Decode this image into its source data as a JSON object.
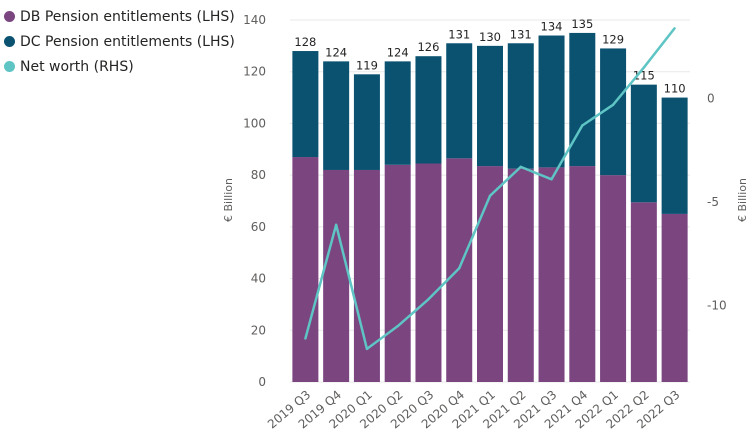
{
  "chart_data": {
    "type": "bar",
    "stacked": true,
    "categories": [
      "2019 Q3",
      "2019 Q4",
      "2020 Q1",
      "2020 Q2",
      "2020 Q3",
      "2020 Q4",
      "2021 Q1",
      "2021 Q2",
      "2021 Q3",
      "2021 Q4",
      "2022 Q1",
      "2022 Q2",
      "2022 Q3"
    ],
    "series": [
      {
        "name": "DB Pension entitlements (LHS)",
        "type": "bar",
        "axis": "left",
        "color": "#7b4580",
        "values": [
          87,
          82,
          82,
          84,
          84.5,
          86.5,
          83.5,
          82.5,
          83,
          83.5,
          80,
          69.5,
          65
        ]
      },
      {
        "name": "DC Pension entitlements (LHS)",
        "type": "bar",
        "axis": "left",
        "color": "#0b5271",
        "values": [
          41,
          42,
          37,
          40,
          41.5,
          44.5,
          46.5,
          48.5,
          51,
          51.5,
          49,
          45.5,
          45
        ]
      },
      {
        "name": "Net worth (RHS)",
        "type": "line",
        "axis": "right",
        "color": "#5ec4c4",
        "values": [
          -11.6,
          -6.1,
          -12.1,
          -11.0,
          -9.7,
          -8.2,
          -4.7,
          -3.3,
          -3.9,
          -1.3,
          -0.3,
          1.5,
          3.4
        ]
      }
    ],
    "totals": [
      128,
      124,
      119,
      124,
      126,
      131,
      130,
      131,
      134,
      135,
      129,
      115,
      110
    ],
    "y_left": {
      "label": "€ Billion",
      "range": [
        0,
        140
      ],
      "ticks": [
        0,
        20,
        40,
        60,
        80,
        100,
        120,
        140
      ]
    },
    "y_right": {
      "label": "€ Billion",
      "range": [
        -13.7,
        3.8
      ],
      "ticks": [
        -10,
        -5,
        0
      ]
    },
    "legend": "top-left"
  }
}
